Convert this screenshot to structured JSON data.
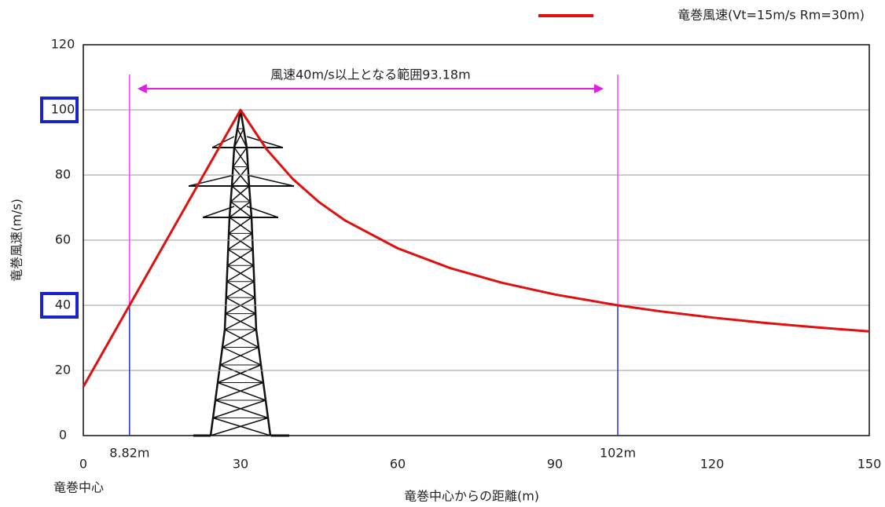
{
  "chart_data": {
    "type": "line",
    "legend": "竜巻風速(Vt=15m/s  Rm=30m)",
    "legend_position": "top-right",
    "xlabel": "竜巻中心からの距離(m)",
    "ylabel": "竜巻風速(m/s)",
    "origin_label": "竜巻中心",
    "x": [
      0,
      8.82,
      30,
      35,
      40,
      45,
      50,
      60,
      70,
      80,
      90,
      102,
      110,
      120,
      130,
      140,
      150
    ],
    "series": [
      {
        "name": "竜巻風速(Vt=15m/s  Rm=30m)",
        "color": "#e01010",
        "values": [
          15,
          40,
          100,
          87.86,
          78.75,
          71.67,
          66,
          57.5,
          51.43,
          46.88,
          43.33,
          40,
          38.18,
          36.25,
          34.62,
          33.21,
          32
        ]
      }
    ],
    "xlim": [
      0,
      150
    ],
    "xticks": [
      0,
      30,
      60,
      90,
      120,
      150
    ],
    "ylim": [
      0,
      120
    ],
    "yticks": [
      0,
      20,
      40,
      60,
      80,
      100,
      120
    ],
    "grid": true,
    "highlight_yticks": [
      100,
      40
    ],
    "threshold": 40,
    "markers": [
      {
        "x": 8.82,
        "label": "8.82m"
      },
      {
        "x": 102,
        "label": "102m"
      }
    ],
    "range_annotation": "風速40m/s以上となる範囲93.18m"
  }
}
